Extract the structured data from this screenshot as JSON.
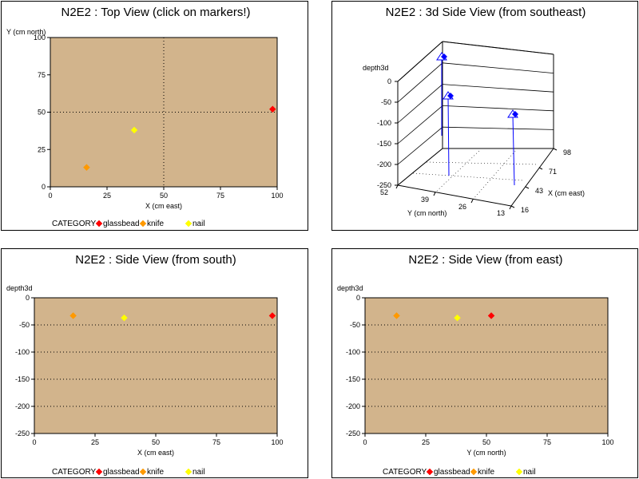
{
  "colors": {
    "plot_bg": "#D2B48C",
    "glassbead": "#FF0000",
    "knife": "#FF9900",
    "nail": "#FFFF00",
    "stem": "#0000FF"
  },
  "legend": {
    "title": "CATEGORY",
    "items": [
      {
        "label": "glassbead",
        "color": "#FF0000"
      },
      {
        "label": "knife",
        "color": "#FF9900"
      },
      {
        "label": "nail",
        "color": "#FFFF00"
      }
    ]
  },
  "chart_data": [
    {
      "type": "scatter",
      "title": "N2E2 : Top View (click on markers!)",
      "xlabel": "X (cm east)",
      "ylabel": "Y (cm north)",
      "xlim": [
        0,
        100
      ],
      "ylim": [
        0,
        100
      ],
      "xticks": [
        0,
        25,
        50,
        75,
        100
      ],
      "yticks": [
        0,
        25,
        50,
        75,
        100
      ],
      "reference_lines": {
        "x": [
          50
        ],
        "y": [
          50
        ]
      },
      "points": [
        {
          "category": "glassbead",
          "x": 98,
          "y": 52
        },
        {
          "category": "knife",
          "x": 16,
          "y": 13
        },
        {
          "category": "nail",
          "x": 37,
          "y": 38
        }
      ]
    },
    {
      "type": "scatter3d",
      "title": "N2E2 : 3d Side View (from southeast)",
      "zlabel": "depth3d",
      "xlabel": "X (cm east)",
      "ylabel": "Y (cm north)",
      "xticks": [
        16,
        43,
        71,
        98
      ],
      "yticks": [
        52,
        39,
        26,
        13
      ],
      "zticks": [
        0,
        -50,
        -100,
        -150,
        -200,
        -250
      ],
      "zlim": [
        -250,
        0
      ],
      "points": [
        {
          "x": 98,
          "y": 52,
          "z": -33
        },
        {
          "x": 16,
          "y": 13,
          "z": -33
        },
        {
          "x": 37,
          "y": 38,
          "z": -37
        }
      ]
    },
    {
      "type": "scatter",
      "title": "N2E2 : Side View (from south)",
      "xlabel": "X (cm east)",
      "ylabel": "depth3d",
      "xlim": [
        0,
        100
      ],
      "ylim": [
        -250,
        0
      ],
      "xticks": [
        0,
        25,
        50,
        75,
        100
      ],
      "yticks": [
        0,
        -50,
        -100,
        -150,
        -200,
        -250
      ],
      "points": [
        {
          "category": "glassbead",
          "x": 98,
          "y": -33
        },
        {
          "category": "knife",
          "x": 16,
          "y": -33
        },
        {
          "category": "nail",
          "x": 37,
          "y": -37
        }
      ]
    },
    {
      "type": "scatter",
      "title": "N2E2 : Side View (from east)",
      "xlabel": "Y (cm north)",
      "ylabel": "depth3d",
      "xlim": [
        0,
        100
      ],
      "ylim": [
        -250,
        0
      ],
      "xticks": [
        0,
        25,
        50,
        75,
        100
      ],
      "yticks": [
        0,
        -50,
        -100,
        -150,
        -200,
        -250
      ],
      "points": [
        {
          "category": "glassbead",
          "x": 52,
          "y": -33
        },
        {
          "category": "knife",
          "x": 13,
          "y": -33
        },
        {
          "category": "nail",
          "x": 38,
          "y": -37
        }
      ]
    }
  ]
}
